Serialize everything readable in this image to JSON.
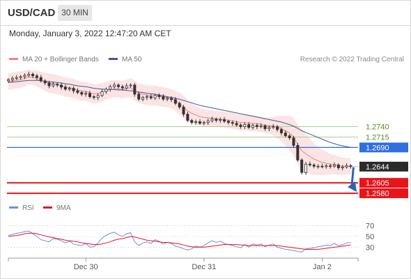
{
  "header": {
    "symbol": "USD/CAD",
    "interval": "30 MIN"
  },
  "timestamp": "Monday, January 3, 2022 12:47:20 AM CET",
  "legend": {
    "ma20_label": "MA 20 + Bollinger Bands",
    "ma50_label": "MA 50",
    "credit": "Research © 2022 Trading Central"
  },
  "colors": {
    "ma20": "#f08080",
    "ma50": "#3a5a9b",
    "bollinger_fill": "#fce4e4",
    "candle": "#333333",
    "resistance": "#a8d08d",
    "pivot_blue": "#2f6fdf",
    "support_red": "#e8141a",
    "arrow": "#2e63b6",
    "rsi": "#6b8fe0",
    "rsi_ma": "#e8141a"
  },
  "chart_data": [
    {
      "type": "candlestick",
      "title": "USD/CAD",
      "x_ticks": [
        "Dec 30",
        "Dec 31",
        "Jan 2"
      ],
      "ylim": [
        1.2555,
        1.2885
      ],
      "grid": false,
      "legend_placement": "top-left",
      "series": [
        {
          "name": "MA 20 + Bollinger Bands"
        },
        {
          "name": "MA 50"
        }
      ],
      "price_levels": [
        {
          "value": "1.2740",
          "kind": "resistance",
          "style": "line-label"
        },
        {
          "value": "1.2715",
          "kind": "resistance",
          "style": "line-label"
        },
        {
          "value": "1.2690",
          "kind": "pivot",
          "style": "box"
        },
        {
          "value": "1.2644",
          "kind": "last",
          "style": "box-dotted"
        },
        {
          "value": "1.2605",
          "kind": "support",
          "style": "box"
        },
        {
          "value": "1.2580",
          "kind": "support",
          "style": "box"
        }
      ],
      "close": [
        1.2853,
        1.2856,
        1.2858,
        1.286,
        1.2863,
        1.2866,
        1.2862,
        1.2858,
        1.285,
        1.2845,
        1.2838,
        1.2842,
        1.284,
        1.2835,
        1.283,
        1.2832,
        1.2826,
        1.2822,
        1.2818,
        1.282,
        1.2812,
        1.281,
        1.2815,
        1.2824,
        1.283,
        1.2836,
        1.284,
        1.2836,
        1.2833,
        1.2838,
        1.284,
        1.2818,
        1.2806,
        1.281,
        1.2812,
        1.2809,
        1.2815,
        1.2812,
        1.2806,
        1.2808,
        1.2805,
        1.2796,
        1.2787,
        1.277,
        1.2755,
        1.275,
        1.2752,
        1.2748,
        1.275,
        1.2754,
        1.2758,
        1.2755,
        1.2757,
        1.2753,
        1.275,
        1.2748,
        1.2744,
        1.274,
        1.2745,
        1.2738,
        1.2743,
        1.274,
        1.2742,
        1.2735,
        1.2738,
        1.274,
        1.2733,
        1.2725,
        1.2718,
        1.2713,
        1.2695,
        1.266,
        1.263,
        1.265,
        1.2648,
        1.2645,
        1.2645,
        1.2644,
        1.2646,
        1.2645,
        1.2648,
        1.2641,
        1.2643,
        1.2646,
        1.2644
      ],
      "ma20": [
        1.2848,
        1.285,
        1.2852,
        1.2853,
        1.2856,
        1.2859,
        1.2858,
        1.2856,
        1.2852,
        1.2848,
        1.2844,
        1.2843,
        1.2841,
        1.2838,
        1.2835,
        1.2834,
        1.2831,
        1.2828,
        1.2825,
        1.2825,
        1.2821,
        1.2819,
        1.282,
        1.2823,
        1.2826,
        1.2829,
        1.2831,
        1.283,
        1.2829,
        1.2832,
        1.2833,
        1.2827,
        1.282,
        1.2818,
        1.2816,
        1.2814,
        1.2815,
        1.2813,
        1.2811,
        1.281,
        1.2807,
        1.2802,
        1.2796,
        1.2787,
        1.2778,
        1.2772,
        1.2768,
        1.2764,
        1.2762,
        1.2761,
        1.276,
        1.2759,
        1.2758,
        1.2757,
        1.2755,
        1.2754,
        1.2752,
        1.275,
        1.275,
        1.2748,
        1.2748,
        1.2747,
        1.2746,
        1.2743,
        1.2742,
        1.2742,
        1.2739,
        1.2735,
        1.273,
        1.2725,
        1.2715,
        1.2698,
        1.2682,
        1.2675,
        1.2668,
        1.2662,
        1.2658,
        1.2654,
        1.2652,
        1.265,
        1.2649,
        1.2646,
        1.2645,
        1.2645,
        1.2644
      ],
      "ma50": [
        1.2846,
        1.2847,
        1.2848,
        1.2849,
        1.285,
        1.2851,
        1.2851,
        1.2851,
        1.285,
        1.2849,
        1.2848,
        1.2847,
        1.2846,
        1.2845,
        1.2843,
        1.2842,
        1.284,
        1.2838,
        1.2837,
        1.2836,
        1.2834,
        1.2832,
        1.2831,
        1.283,
        1.2829,
        1.2829,
        1.2829,
        1.2828,
        1.2828,
        1.2827,
        1.2826,
        1.2825,
        1.2823,
        1.2822,
        1.282,
        1.2819,
        1.2818,
        1.2816,
        1.2814,
        1.2812,
        1.281,
        1.2808,
        1.2806,
        1.2803,
        1.28,
        1.2797,
        1.2794,
        1.2791,
        1.2789,
        1.2787,
        1.2785,
        1.2783,
        1.2781,
        1.2779,
        1.2777,
        1.2775,
        1.2773,
        1.2771,
        1.2769,
        1.2767,
        1.2765,
        1.2763,
        1.2761,
        1.2759,
        1.2757,
        1.2755,
        1.2753,
        1.2751,
        1.2748,
        1.2745,
        1.2741,
        1.2736,
        1.273,
        1.2726,
        1.2722,
        1.2718,
        1.2714,
        1.271,
        1.2706,
        1.2702,
        1.2699,
        1.2696,
        1.2694,
        1.2692,
        1.269
      ],
      "bb_upper": [
        1.2868,
        1.287,
        1.2872,
        1.2873,
        1.2875,
        1.2877,
        1.2876,
        1.2875,
        1.2872,
        1.287,
        1.2867,
        1.2866,
        1.2864,
        1.2861,
        1.2858,
        1.2857,
        1.2854,
        1.2851,
        1.2848,
        1.2848,
        1.2844,
        1.2842,
        1.2843,
        1.2845,
        1.2847,
        1.285,
        1.2852,
        1.2851,
        1.285,
        1.2853,
        1.2856,
        1.2851,
        1.2844,
        1.2842,
        1.284,
        1.2838,
        1.2839,
        1.2837,
        1.2835,
        1.2833,
        1.283,
        1.2826,
        1.2822,
        1.2815,
        1.2805,
        1.2795,
        1.279,
        1.2785,
        1.2782,
        1.278,
        1.2779,
        1.2778,
        1.2777,
        1.2776,
        1.2774,
        1.2773,
        1.2771,
        1.2769,
        1.2769,
        1.2767,
        1.2767,
        1.2766,
        1.2765,
        1.2762,
        1.2762,
        1.2764,
        1.2765,
        1.2766,
        1.2766,
        1.2766,
        1.276,
        1.2745,
        1.2735,
        1.2722,
        1.271,
        1.27,
        1.2692,
        1.2685,
        1.268,
        1.2675,
        1.2672,
        1.2668,
        1.2666,
        1.2665,
        1.2664
      ],
      "bb_lower": [
        1.2828,
        1.283,
        1.2832,
        1.2833,
        1.2837,
        1.2841,
        1.284,
        1.2837,
        1.2832,
        1.2826,
        1.2821,
        1.282,
        1.2818,
        1.2815,
        1.2812,
        1.2811,
        1.2808,
        1.2805,
        1.2802,
        1.2802,
        1.2798,
        1.2796,
        1.2797,
        1.2801,
        1.2805,
        1.2808,
        1.281,
        1.2809,
        1.2808,
        1.2811,
        1.281,
        1.2803,
        1.2796,
        1.2794,
        1.2792,
        1.279,
        1.2791,
        1.2789,
        1.2787,
        1.2787,
        1.2784,
        1.2778,
        1.277,
        1.2759,
        1.2751,
        1.2749,
        1.2746,
        1.2743,
        1.2742,
        1.2742,
        1.2741,
        1.274,
        1.2739,
        1.2738,
        1.2736,
        1.2735,
        1.2733,
        1.2731,
        1.2731,
        1.2729,
        1.2729,
        1.2728,
        1.2727,
        1.2724,
        1.2722,
        1.272,
        1.2713,
        1.2704,
        1.2694,
        1.2684,
        1.267,
        1.2651,
        1.2629,
        1.2628,
        1.2626,
        1.2624,
        1.2624,
        1.2623,
        1.2624,
        1.2625,
        1.2626,
        1.2624,
        1.2624,
        1.2625,
        1.2624
      ]
    },
    {
      "type": "line",
      "title": "RSI",
      "ylim": [
        15,
        85
      ],
      "y_ticks": [
        "70",
        "50",
        "30"
      ],
      "grid": true,
      "legend_placement": "top-left",
      "series": [
        {
          "name": "RSI",
          "values": [
            52,
            54,
            56,
            57,
            59,
            60,
            55,
            50,
            44,
            42,
            40,
            46,
            45,
            42,
            38,
            41,
            36,
            34,
            33,
            37,
            30,
            31,
            38,
            47,
            52,
            56,
            58,
            53,
            50,
            55,
            57,
            40,
            33,
            38,
            40,
            37,
            44,
            41,
            36,
            39,
            37,
            32,
            30,
            27,
            25,
            27,
            32,
            30,
            33,
            38,
            42,
            39,
            41,
            37,
            35,
            33,
            31,
            29,
            35,
            30,
            36,
            34,
            36,
            31,
            34,
            36,
            30,
            28,
            26,
            25,
            24,
            22,
            21,
            27,
            28,
            29,
            31,
            32,
            34,
            33,
            37,
            33,
            35,
            38,
            39
          ]
        },
        {
          "name": "9MA",
          "values": [
            50,
            51,
            52,
            53,
            55,
            56,
            56,
            55,
            53,
            51,
            49,
            48,
            46,
            45,
            43,
            42,
            41,
            40,
            38,
            37,
            36,
            35,
            35,
            36,
            38,
            40,
            43,
            45,
            46,
            48,
            50,
            49,
            47,
            45,
            43,
            42,
            41,
            40,
            39,
            39,
            38,
            37,
            36,
            34,
            32,
            31,
            30,
            30,
            30,
            31,
            32,
            33,
            34,
            35,
            35,
            35,
            35,
            34,
            34,
            33,
            33,
            33,
            33,
            33,
            33,
            33,
            33,
            32,
            31,
            30,
            29,
            28,
            27,
            26,
            26,
            26,
            26,
            27,
            28,
            29,
            30,
            31,
            32,
            33,
            34
          ]
        }
      ]
    }
  ]
}
